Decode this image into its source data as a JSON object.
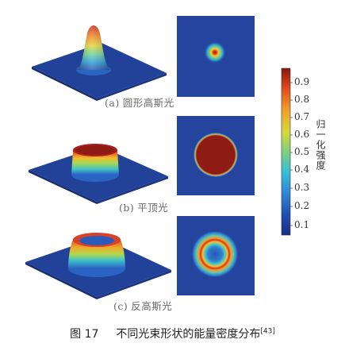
{
  "panels": [
    {
      "label": "(a)",
      "title": "圆形高斯光",
      "profile": "gaussian"
    },
    {
      "label": "(b)",
      "title": "平顶光",
      "profile": "flattop"
    },
    {
      "label": "(c)",
      "title": "反高斯光",
      "profile": "ring"
    }
  ],
  "colorbar": {
    "title": "归一化强度",
    "ticks": [
      "0.9",
      "0.8",
      "0.7",
      "0.6",
      "0.5",
      "0.4",
      "0.3",
      "0.2",
      "0.1"
    ],
    "colormap": "jet"
  },
  "caption": {
    "figure_number": "图 17",
    "text": "不同光束形状的能量密度分布",
    "reference": "[43]"
  }
}
